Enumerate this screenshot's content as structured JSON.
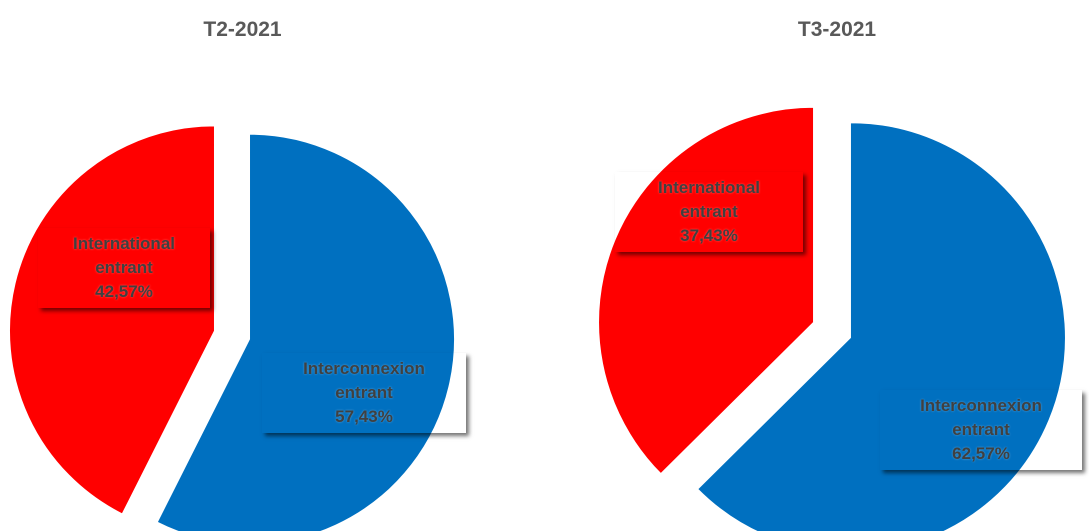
{
  "chart_data": [
    {
      "type": "pie",
      "title": "T2-2021",
      "slices": [
        {
          "label_line1": "Interconnexion",
          "label_line2": "entrant",
          "value_text": "57,43%",
          "value": 57.43,
          "color": "#0070C0"
        },
        {
          "label_line1": "International",
          "label_line2": "entrant",
          "value_text": "42,57%",
          "value": 42.57,
          "color": "#FF0000"
        }
      ]
    },
    {
      "type": "pie",
      "title": "T3-2021",
      "slices": [
        {
          "label_line1": "Interconnexion",
          "label_line2": "entrant",
          "value_text": "62,57%",
          "value": 62.57,
          "color": "#0070C0"
        },
        {
          "label_line1": "International",
          "label_line2": "entrant",
          "value_text": "37,43%",
          "value": 37.43,
          "color": "#FF0000"
        }
      ]
    }
  ]
}
